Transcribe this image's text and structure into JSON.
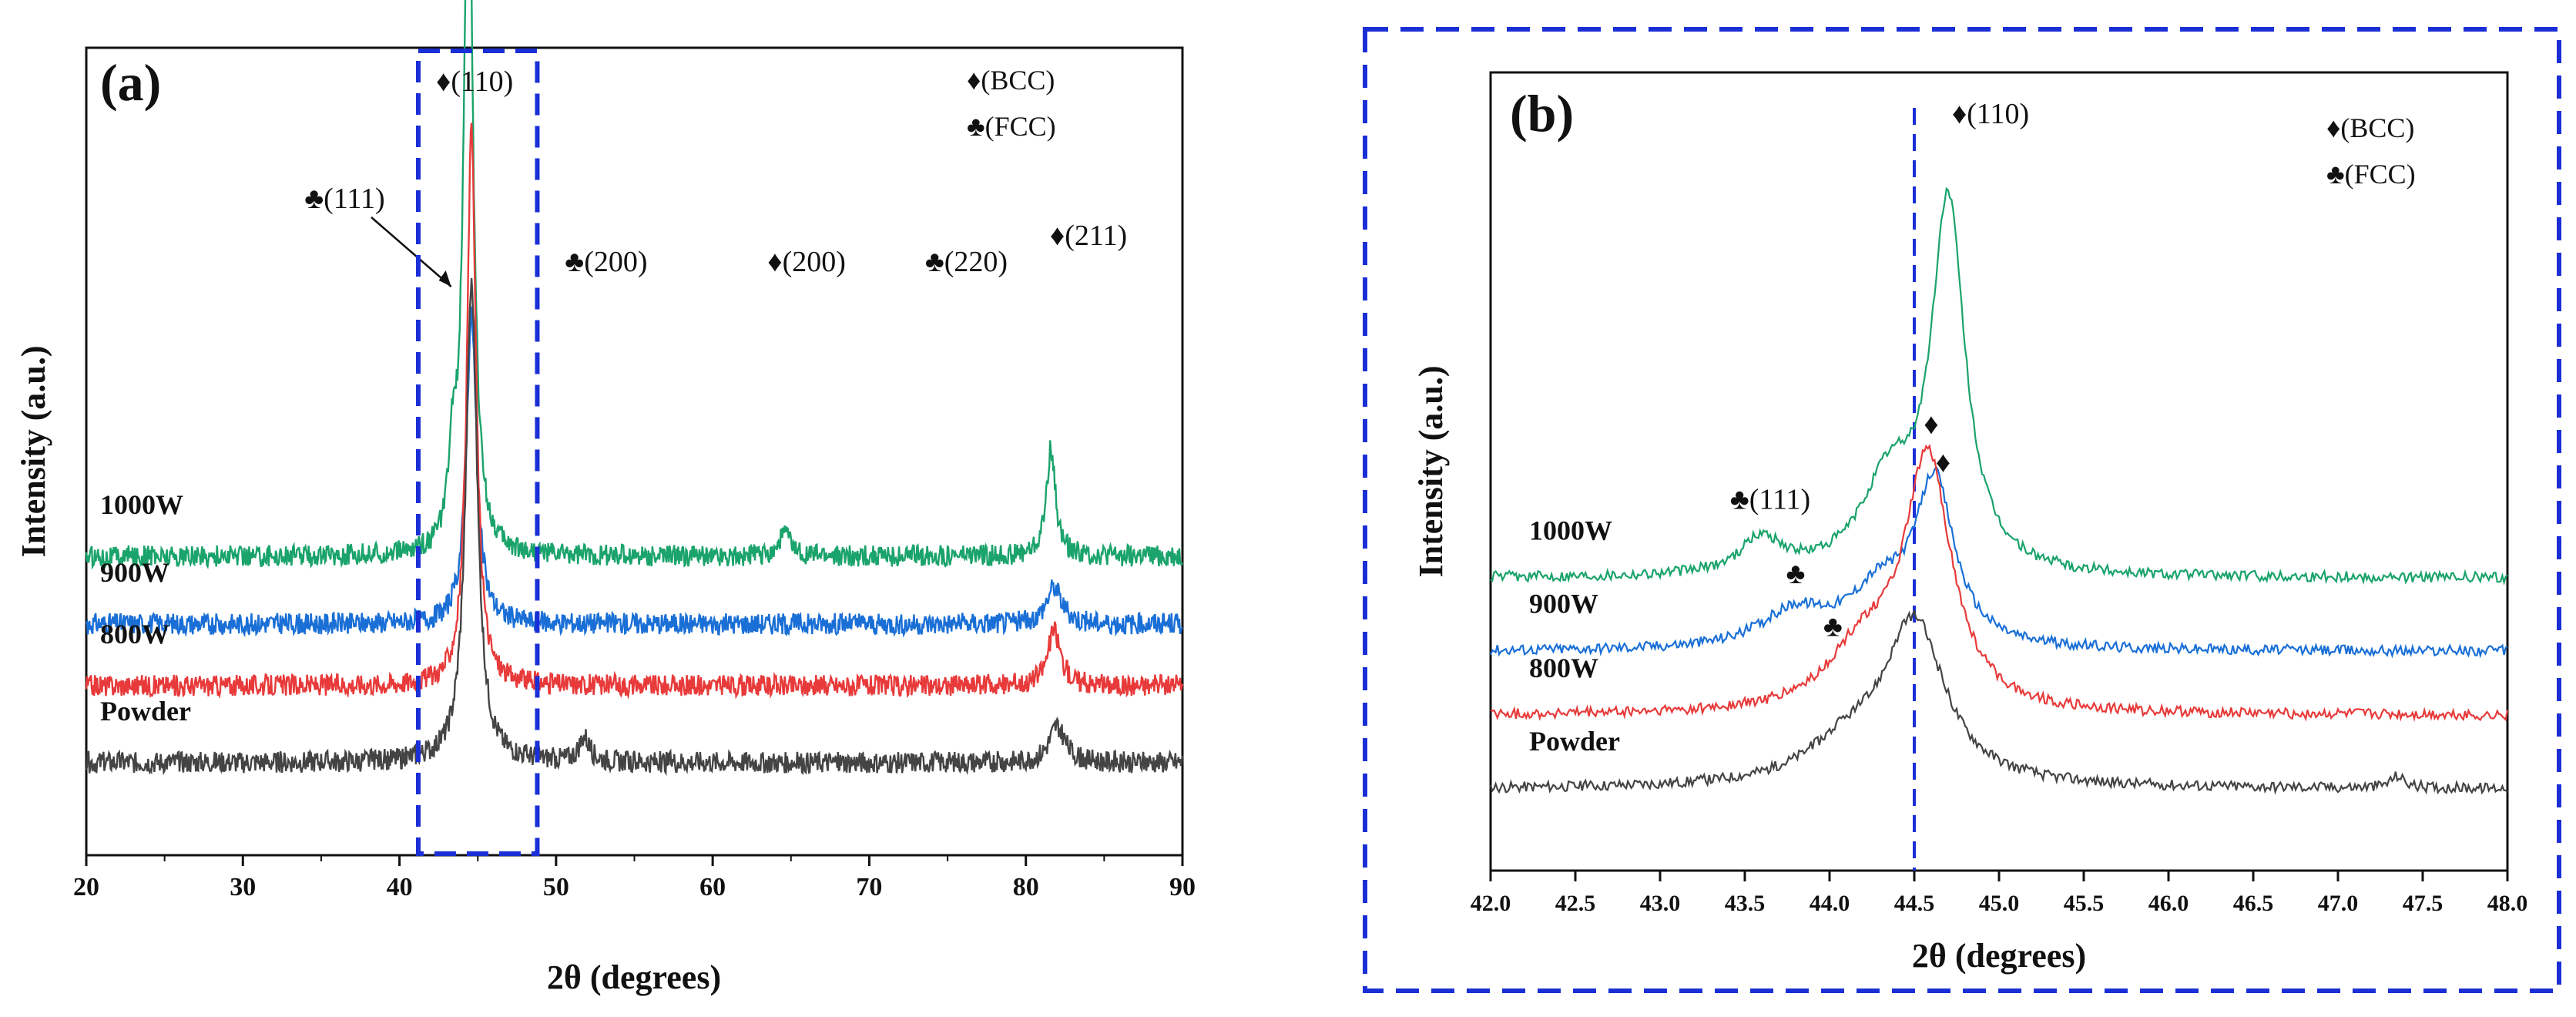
{
  "chart_data": [
    {
      "panel": "(a)",
      "type": "line",
      "xlabel": "2θ (degrees)",
      "ylabel": "Intensity (a.u.)",
      "xlim": [
        20,
        90
      ],
      "xticks": [
        20,
        30,
        40,
        50,
        60,
        70,
        80,
        90
      ],
      "legend": {
        "placement": "top-right",
        "entries": [
          "♦(BCC)",
          "♣(FCC)"
        ]
      },
      "highlight_box_x": [
        41.2,
        48.8
      ],
      "series": [
        {
          "label": "1000W",
          "color": "#1aa36b",
          "baseline": 0.82,
          "peaks": [
            {
              "x": 44.4,
              "h": 2.4,
              "w": 0.35
            },
            {
              "x": 43.4,
              "h": 0.25,
              "w": 0.3
            },
            {
              "x": 81.6,
              "h": 0.35,
              "w": 0.35
            },
            {
              "x": 64.6,
              "h": 0.08,
              "w": 0.4
            }
          ]
        },
        {
          "label": "900W",
          "color": "#1a6fd6",
          "baseline": 0.6,
          "peaks": [
            {
              "x": 44.6,
              "h": 1.0,
              "w": 0.4
            },
            {
              "x": 81.8,
              "h": 0.12,
              "w": 0.6
            }
          ]
        },
        {
          "label": "800W",
          "color": "#e83a3a",
          "baseline": 0.4,
          "peaks": [
            {
              "x": 44.6,
              "h": 1.8,
              "w": 0.35
            },
            {
              "x": 81.8,
              "h": 0.18,
              "w": 0.5
            }
          ]
        },
        {
          "label": "Powder",
          "color": "#444444",
          "baseline": 0.15,
          "peaks": [
            {
              "x": 44.6,
              "h": 1.55,
              "w": 0.45
            },
            {
              "x": 51.8,
              "h": 0.08,
              "w": 0.4
            },
            {
              "x": 82.0,
              "h": 0.12,
              "w": 0.6
            }
          ]
        }
      ],
      "annotations": [
        {
          "text": "♦(110)",
          "x": 44.8,
          "series": "top"
        },
        {
          "text": "♣(111)",
          "x": 36.5,
          "series": "1000W"
        },
        {
          "text": "♣(200)",
          "x": 53.2,
          "series": "1000W"
        },
        {
          "text": "♦(200)",
          "x": 66.0,
          "series": "1000W"
        },
        {
          "text": "♣(220)",
          "x": 76.2,
          "series": "1000W"
        },
        {
          "text": "♦(211)",
          "x": 84.0,
          "series": "1000W"
        }
      ]
    },
    {
      "panel": "(b)",
      "type": "line",
      "xlabel": "2θ (degrees)",
      "ylabel": "Intensity (a.u.)",
      "xlim": [
        42.0,
        48.0
      ],
      "xticks": [
        42.0,
        42.5,
        43.0,
        43.5,
        44.0,
        44.5,
        45.0,
        45.5,
        46.0,
        46.5,
        47.0,
        47.5,
        48.0
      ],
      "reference_line_x": 44.5,
      "legend": {
        "placement": "top-right",
        "entries": [
          "♦(BCC)",
          "♣(FCC)"
        ]
      },
      "series": [
        {
          "label": "1000W",
          "color": "#1aa36b",
          "baseline": 0.82,
          "peaks": [
            {
              "x": 44.7,
              "h": 1.25,
              "w": 0.12
            },
            {
              "x": 44.35,
              "h": 0.3,
              "w": 0.2
            },
            {
              "x": 43.6,
              "h": 0.12,
              "w": 0.15
            }
          ]
        },
        {
          "label": "900W",
          "color": "#1a6fd6",
          "baseline": 0.57,
          "peaks": [
            {
              "x": 44.62,
              "h": 0.55,
              "w": 0.14
            },
            {
              "x": 44.3,
              "h": 0.18,
              "w": 0.22
            },
            {
              "x": 43.8,
              "h": 0.12,
              "w": 0.25
            }
          ]
        },
        {
          "label": "800W",
          "color": "#e83a3a",
          "baseline": 0.35,
          "peaks": [
            {
              "x": 44.58,
              "h": 0.85,
              "w": 0.17
            },
            {
              "x": 44.2,
              "h": 0.2,
              "w": 0.25
            }
          ]
        },
        {
          "label": "Powder",
          "color": "#444444",
          "baseline": 0.1,
          "peaks": [
            {
              "x": 44.5,
              "h": 0.55,
              "w": 0.22
            },
            {
              "x": 44.1,
              "h": 0.12,
              "w": 0.3
            },
            {
              "x": 47.35,
              "h": 0.04,
              "w": 0.05
            }
          ]
        }
      ],
      "annotations": [
        {
          "text": "♦(110)",
          "x": 44.95,
          "series": "top"
        },
        {
          "text": "♣(111)",
          "x": 43.65,
          "series": "1000W"
        },
        {
          "text": "♦",
          "x": 44.67,
          "series": "900W"
        },
        {
          "text": "♣",
          "x": 43.8,
          "series": "900W"
        },
        {
          "text": "♦",
          "x": 44.6,
          "series": "800W"
        },
        {
          "text": "♣",
          "x": 44.02,
          "series": "800W"
        }
      ]
    }
  ],
  "colors": {
    "dashed_box": "#1a2fd6",
    "axis": "#111111"
  }
}
